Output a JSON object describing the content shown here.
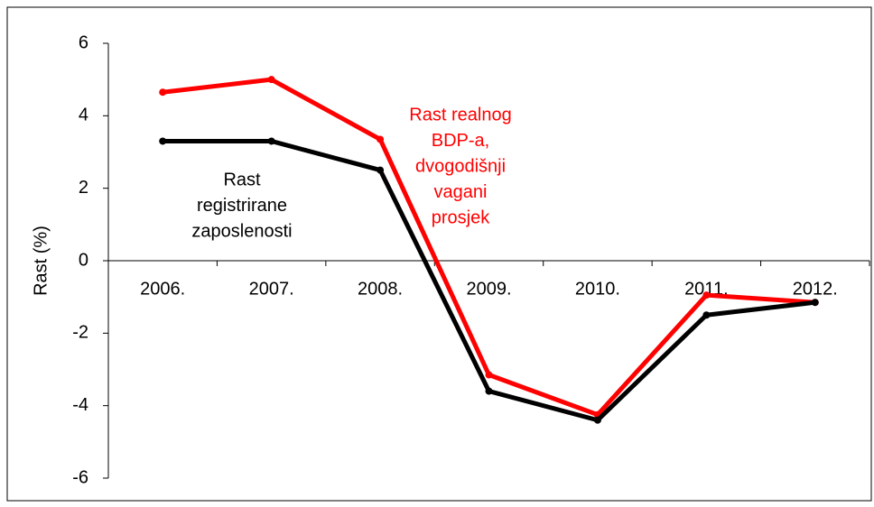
{
  "chart_data": {
    "type": "line",
    "categories": [
      "2006.",
      "2007.",
      "2008.",
      "2009.",
      "2010.",
      "2011.",
      "2012."
    ],
    "y_label": "Rast (%)",
    "ylim": [
      -6,
      6
    ],
    "yticks": [
      -6,
      -4,
      -2,
      0,
      2,
      4,
      6
    ],
    "grid": false,
    "series": [
      {
        "name": [
          "Rast realnog",
          "BDP-a,",
          "dvogodišnji",
          "vagani",
          "prosjek"
        ],
        "color": "#ff0000",
        "values": [
          4.65,
          5.0,
          3.35,
          -3.15,
          -4.25,
          -0.95,
          -1.15
        ]
      },
      {
        "name": [
          "Rast",
          "registrirane",
          "zaposlenosti"
        ],
        "color": "#000000",
        "values": [
          3.3,
          3.3,
          2.5,
          -3.6,
          -4.4,
          -1.5,
          -1.15
        ]
      }
    ]
  }
}
